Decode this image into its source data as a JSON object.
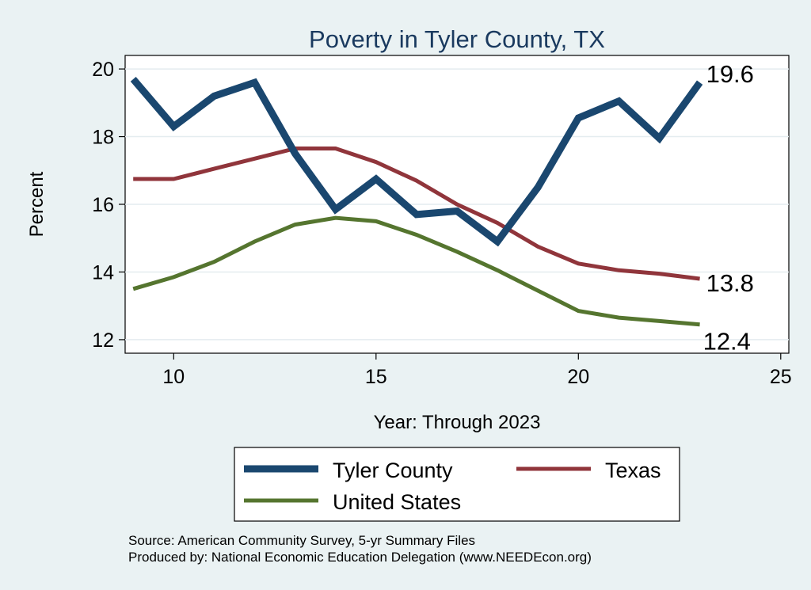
{
  "chart_data": {
    "type": "line",
    "title": "Poverty in Tyler County, TX",
    "xlabel": "Year: Through 2023",
    "ylabel": "Percent",
    "xlim": [
      8.8,
      25.2
    ],
    "ylim": [
      11.6,
      20.4
    ],
    "xticks": [
      10,
      15,
      20,
      25
    ],
    "yticks": [
      12,
      14,
      16,
      18,
      20
    ],
    "grid": true,
    "x": [
      9,
      10,
      11,
      12,
      13,
      14,
      15,
      16,
      17,
      18,
      19,
      20,
      21,
      22,
      23
    ],
    "series": [
      {
        "name": "Tyler County",
        "color": "#1a476f",
        "values": [
          19.7,
          18.3,
          19.2,
          19.6,
          17.5,
          15.85,
          16.75,
          15.7,
          15.8,
          14.9,
          16.5,
          18.55,
          19.05,
          17.95,
          19.6
        ],
        "end_label": "19.6"
      },
      {
        "name": "Texas",
        "color": "#90353b",
        "values": [
          16.75,
          16.75,
          17.05,
          17.35,
          17.65,
          17.65,
          17.25,
          16.7,
          16.0,
          15.45,
          14.75,
          14.25,
          14.05,
          13.95,
          13.8
        ],
        "end_label": "13.8"
      },
      {
        "name": "United States",
        "color": "#55752f",
        "values": [
          13.5,
          13.85,
          14.3,
          14.9,
          15.4,
          15.6,
          15.5,
          15.1,
          14.6,
          14.05,
          13.45,
          12.85,
          12.65,
          12.55,
          12.45
        ],
        "end_label": "12.4"
      }
    ],
    "legend": {
      "position": "bottom",
      "entries": [
        "Tyler County",
        "Texas",
        "United States"
      ]
    }
  },
  "notes": {
    "source": "Source: American Community Survey, 5-yr Summary Files",
    "produced_by": "Produced by: National Economic Education Delegation (www.NEEDEcon.org)"
  }
}
